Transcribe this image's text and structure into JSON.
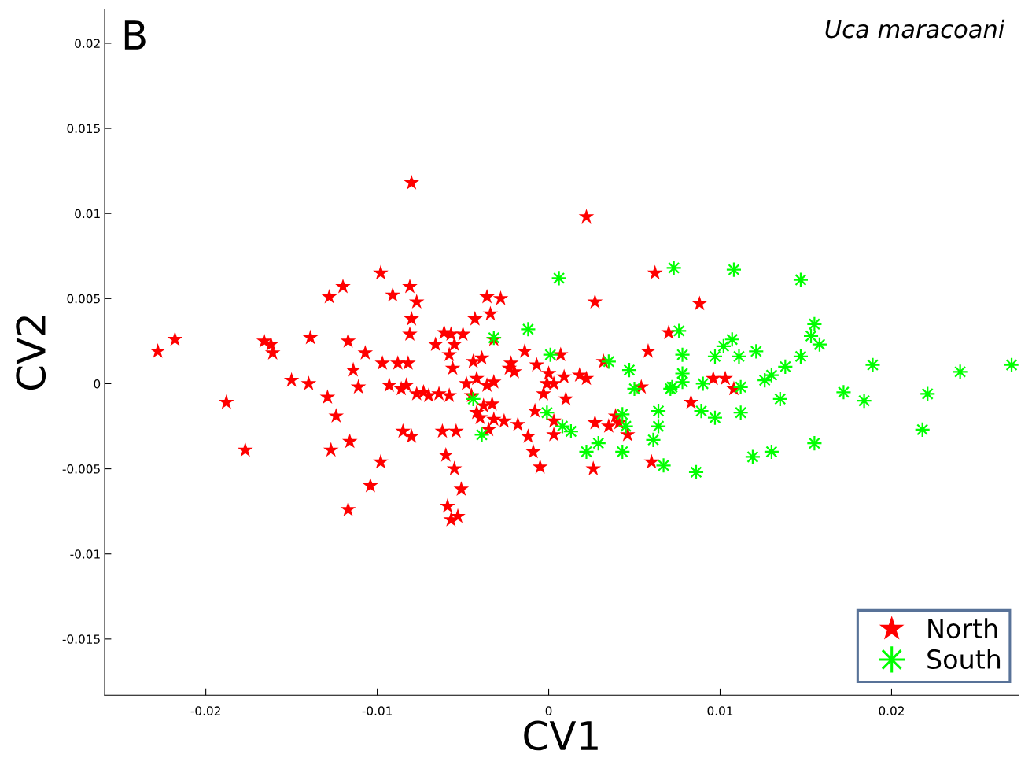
{
  "chart_data": {
    "type": "scatter",
    "xlabel": "CV1",
    "ylabel": "CV2",
    "annotations": [
      "B",
      "Uca maracoani"
    ],
    "xlim": [
      -0.0259,
      0.0274
    ],
    "ylim": [
      -0.0183,
      0.022
    ],
    "xticks": [
      -0.02,
      -0.01,
      0,
      0.01,
      0.02
    ],
    "yticks": [
      -0.015,
      -0.01,
      -0.005,
      0,
      0.005,
      0.01,
      0.015,
      0.02
    ],
    "grid": false,
    "legend": "bottom right",
    "series": [
      {
        "name": "North",
        "color": "#ff0000",
        "marker": "star",
        "x": [
          -0.0228,
          -0.0218,
          -0.0188,
          -0.0177,
          -0.0166,
          -0.0162,
          -0.0161,
          -0.015,
          -0.0139,
          -0.014,
          -0.0128,
          -0.0129,
          -0.0124,
          -0.0127,
          -0.012,
          -0.0117,
          -0.0116,
          -0.0114,
          -0.0111,
          -0.0107,
          -0.0104,
          -0.0117,
          -0.0098,
          -0.0097,
          -0.0098,
          -0.0093,
          -0.0091,
          -0.0088,
          -0.0086,
          -0.0085,
          -0.0082,
          -0.0081,
          -0.0081,
          -0.008,
          -0.008,
          -0.0077,
          -0.008,
          -0.0083,
          -0.0077,
          -0.0073,
          -0.007,
          -0.0066,
          -0.0064,
          -0.0061,
          -0.0058,
          -0.0062,
          -0.006,
          -0.0058,
          -0.0057,
          -0.0056,
          -0.0055,
          -0.0054,
          -0.0059,
          -0.0055,
          -0.0057,
          -0.0053,
          -0.0051,
          -0.005,
          -0.0048,
          -0.0045,
          -0.0043,
          -0.0044,
          -0.0042,
          -0.0039,
          -0.0042,
          -0.0038,
          -0.0036,
          -0.0034,
          -0.004,
          -0.0035,
          -0.0036,
          -0.0032,
          -0.0033,
          -0.0032,
          -0.0028,
          -0.0032,
          -0.0026,
          -0.0023,
          -0.0022,
          -0.002,
          -0.0018,
          -0.0014,
          -0.0012,
          -0.0008,
          -0.0007,
          -0.0003,
          -0.0009,
          -0.0005,
          -0.0001,
          0.0,
          0.0003,
          0.0003,
          0.0003,
          0.0007,
          0.001,
          0.0009,
          0.0018,
          0.0022,
          0.0022,
          0.0027,
          0.0027,
          0.0026,
          0.0032,
          0.0035,
          0.0039,
          0.0041,
          0.0046,
          0.0054,
          0.0058,
          0.006,
          0.0062,
          0.007,
          0.0083,
          0.0088,
          0.0096,
          0.0103,
          0.0108
        ],
        "values": [
          0.0019,
          0.0026,
          -0.0011,
          -0.0039,
          0.0025,
          0.0023,
          0.0018,
          0.0002,
          0.0027,
          0.0,
          0.0051,
          -0.0008,
          -0.0019,
          -0.0039,
          0.0057,
          0.0025,
          -0.0034,
          0.0008,
          -0.0002,
          0.0018,
          -0.006,
          -0.0074,
          0.0065,
          0.0012,
          -0.0046,
          -0.0001,
          0.0052,
          0.0012,
          -0.0003,
          -0.0028,
          0.0012,
          0.0057,
          0.0029,
          0.0038,
          -0.0031,
          0.0048,
          0.0118,
          -0.0001,
          -0.0006,
          -0.0005,
          -0.0007,
          0.0023,
          -0.0006,
          0.003,
          0.0017,
          -0.0028,
          -0.0042,
          -0.0007,
          0.0029,
          0.0009,
          0.0023,
          -0.0028,
          -0.0072,
          -0.005,
          -0.008,
          -0.0078,
          -0.0062,
          0.0029,
          0.0,
          -0.0007,
          0.0038,
          0.0013,
          0.0003,
          0.0015,
          -0.0017,
          -0.0013,
          0.0051,
          0.0041,
          -0.002,
          -0.0027,
          -0.0001,
          0.0001,
          -0.0012,
          0.0026,
          0.005,
          -0.0021,
          -0.0022,
          0.0009,
          0.0012,
          0.0007,
          -0.0024,
          0.0019,
          -0.0031,
          -0.0016,
          0.0011,
          -0.0006,
          -0.004,
          -0.0049,
          0.0,
          0.0006,
          0.0,
          -0.0022,
          -0.003,
          0.0017,
          -0.0009,
          0.0004,
          0.0005,
          0.0098,
          0.0003,
          0.0048,
          -0.0023,
          -0.005,
          0.0013,
          -0.0025,
          -0.0019,
          -0.0023,
          -0.003,
          -0.0002,
          0.0019,
          -0.0046,
          0.0065,
          0.003,
          -0.0011,
          0.0047,
          0.0003,
          0.0003,
          -0.0003
        ]
      },
      {
        "name": "South",
        "color": "#00ff00",
        "marker": "cross",
        "x": [
          0.0073,
          0.0108,
          0.0147,
          0.0076,
          0.0078,
          0.0078,
          0.0072,
          0.0078,
          0.009,
          0.0107,
          0.0102,
          0.0097,
          0.0111,
          0.0121,
          0.0112,
          0.0155,
          0.0153,
          0.0158,
          0.0147,
          0.0138,
          0.013,
          0.0126,
          0.0135,
          0.0189,
          0.0172,
          0.0184,
          0.0221,
          0.024,
          0.027,
          0.0218,
          0.0089,
          0.0097,
          0.0112,
          0.0064,
          0.0064,
          0.0061,
          0.0067,
          0.0086,
          0.0119,
          0.013,
          0.0155,
          0.0006,
          -0.0012,
          -0.0032,
          0.0001,
          0.0035,
          0.0047,
          0.005,
          0.0071,
          -0.0044,
          -0.0039,
          -0.0001,
          0.0008,
          0.0013,
          0.0022,
          0.0029,
          0.0043,
          0.0045,
          0.0043
        ],
        "values": [
          0.0068,
          0.0067,
          0.0061,
          0.0031,
          0.0017,
          0.0006,
          -0.0002,
          0.0001,
          0.0,
          0.0026,
          0.0022,
          0.0016,
          0.0016,
          0.0019,
          -0.0002,
          0.0035,
          0.0028,
          0.0023,
          0.0016,
          0.001,
          0.0005,
          0.0002,
          -0.0009,
          0.0011,
          -0.0005,
          -0.001,
          -0.0006,
          0.0007,
          0.0011,
          -0.0027,
          -0.0016,
          -0.002,
          -0.0017,
          -0.0016,
          -0.0025,
          -0.0033,
          -0.0048,
          -0.0052,
          -0.0043,
          -0.004,
          -0.0035,
          0.0062,
          0.0032,
          0.0027,
          0.0017,
          0.0013,
          0.0008,
          -0.0003,
          -0.0003,
          -0.0009,
          -0.003,
          -0.0017,
          -0.0025,
          -0.0028,
          -0.004,
          -0.0035,
          -0.0018,
          -0.0025,
          -0.004
        ]
      }
    ]
  }
}
